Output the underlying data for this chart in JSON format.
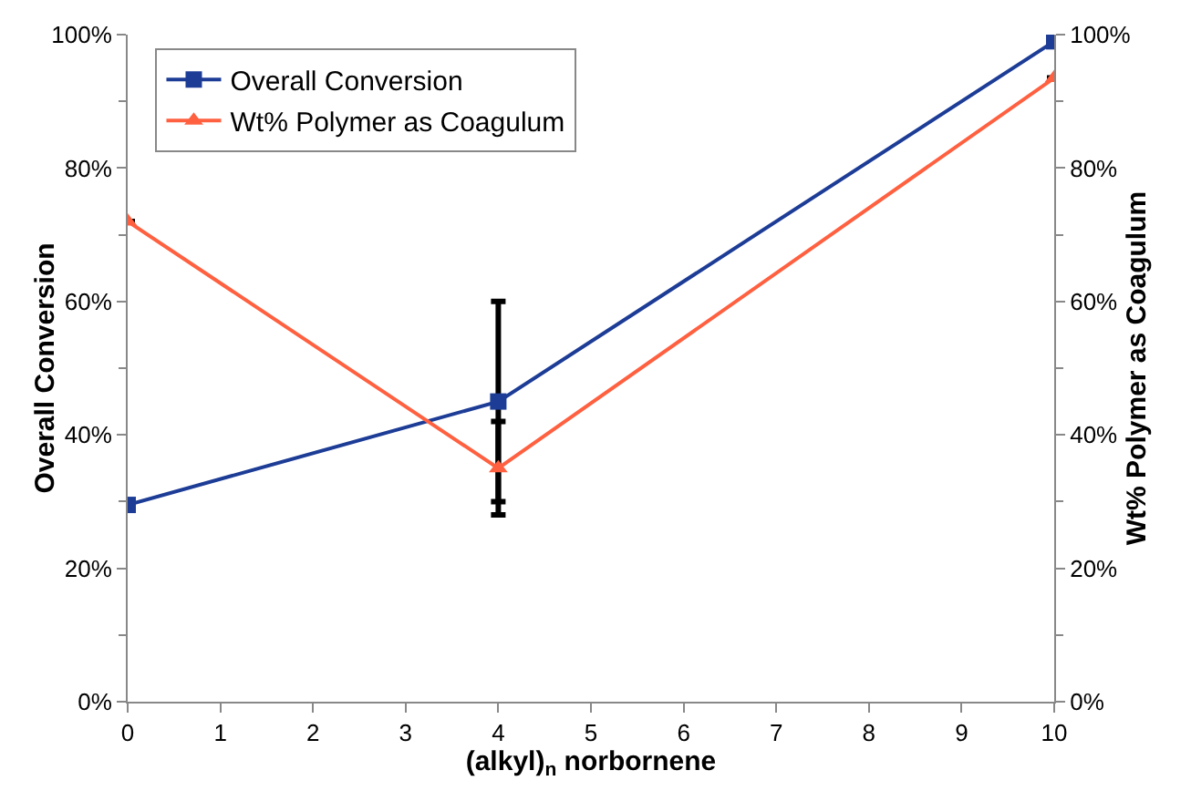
{
  "chart_data": {
    "type": "line",
    "xlabel": "(alkyl)$_{n}$ norbornene",
    "ylabel": "Overall Conversion",
    "y2label": "Wt% Polymer as Coagulum",
    "x": [
      0,
      4,
      10
    ],
    "series": [
      {
        "name": "Overall Conversion",
        "color": "#1c3c96",
        "values": [
          29.5,
          45,
          99
        ],
        "marker": "square",
        "errors": [
          null,
          15,
          null
        ]
      },
      {
        "name": "Wt% Polymer as Coagulum",
        "color": "#ff6040",
        "values": [
          72,
          35,
          93.5
        ],
        "marker": "triangle",
        "axis": "y2",
        "errors": [
          null,
          7,
          null
        ]
      }
    ],
    "xlim": [
      0,
      10
    ],
    "xticks": [
      0,
      1,
      2,
      3,
      4,
      5,
      6,
      7,
      8,
      9,
      10
    ],
    "ylim": [
      0,
      100
    ],
    "yticks": [
      {
        "value": 0,
        "label": "0%"
      },
      {
        "value": 20,
        "label": "20%"
      },
      {
        "value": 40,
        "label": "40%"
      },
      {
        "value": 60,
        "label": "60%"
      },
      {
        "value": 80,
        "label": "80%"
      },
      {
        "value": 100,
        "label": "100%"
      }
    ],
    "y2lim": [
      0,
      100
    ],
    "y2ticks": [
      {
        "value": 0,
        "label": "0%"
      },
      {
        "value": 20,
        "label": "20%"
      },
      {
        "value": 40,
        "label": "40%"
      },
      {
        "value": 60,
        "label": "60%"
      },
      {
        "value": 80,
        "label": "80%"
      },
      {
        "value": 100,
        "label": "100%"
      }
    ],
    "grid": false,
    "legend": "top left"
  }
}
